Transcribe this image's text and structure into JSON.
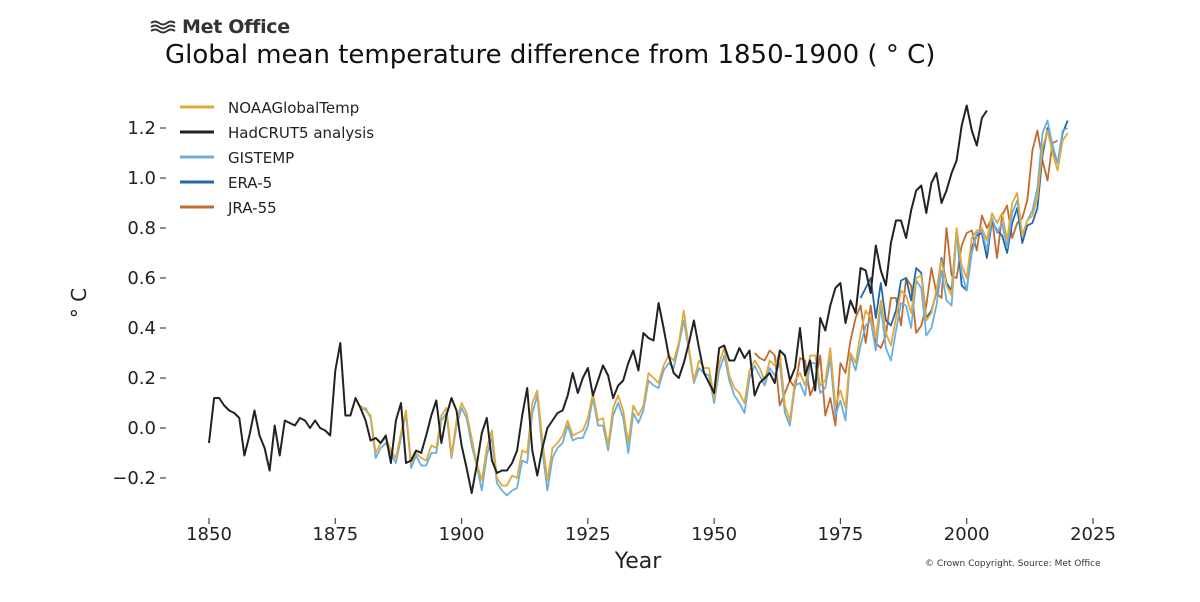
{
  "logo": {
    "text": "Met Office"
  },
  "credit": "© Crown Copyright. Source: Met Office",
  "chart_data": {
    "type": "line",
    "title": "Global mean temperature difference from 1850-1900 ( ° C)",
    "xlabel": "Year",
    "ylabel": "° C",
    "xlim": [
      1850,
      2025
    ],
    "ylim": [
      -0.2,
      1.2
    ],
    "x_ticks": [
      1850,
      1875,
      1900,
      1925,
      1950,
      1975,
      2000,
      2025
    ],
    "y_ticks": [
      -0.2,
      0.0,
      0.2,
      0.4,
      0.6,
      0.8,
      1.0,
      1.2
    ],
    "y_tick_labels": [
      "−0.2",
      "0.0",
      "0.2",
      "0.4",
      "0.6",
      "0.8",
      "1.0",
      "1.2"
    ],
    "grid": false,
    "legend_position": "top-left",
    "series": [
      {
        "name": "NOAAGlobalTemp",
        "color": "#e0a93c",
        "start_year": 1880,
        "values": [
          0.09,
          0.07,
          0.05,
          -0.1,
          -0.06,
          -0.04,
          -0.09,
          -0.12,
          -0.02,
          0.07,
          -0.14,
          -0.1,
          -0.12,
          -0.13,
          -0.07,
          -0.08,
          0.05,
          0.08,
          -0.11,
          0.03,
          0.1,
          0.06,
          -0.04,
          -0.14,
          -0.21,
          -0.08,
          -0.01,
          -0.2,
          -0.23,
          -0.23,
          -0.19,
          -0.2,
          -0.09,
          -0.1,
          0.1,
          0.15,
          -0.05,
          -0.21,
          -0.08,
          -0.06,
          -0.03,
          0.03,
          -0.03,
          -0.02,
          -0.01,
          0.04,
          0.14,
          0.03,
          0.04,
          -0.07,
          0.08,
          0.13,
          0.07,
          -0.06,
          0.09,
          0.05,
          0.09,
          0.22,
          0.2,
          0.18,
          0.25,
          0.29,
          0.27,
          0.34,
          0.47,
          0.32,
          0.19,
          0.27,
          0.24,
          0.24,
          0.12,
          0.26,
          0.32,
          0.21,
          0.16,
          0.14,
          0.1,
          0.23,
          0.27,
          0.24,
          0.19,
          0.27,
          0.25,
          0.3,
          0.09,
          0.03,
          0.19,
          0.22,
          0.17,
          0.29,
          0.29,
          0.17,
          0.19,
          0.32,
          0.09,
          0.15,
          0.08,
          0.3,
          0.26,
          0.38,
          0.47,
          0.44,
          0.36,
          0.51,
          0.38,
          0.33,
          0.44,
          0.55,
          0.53,
          0.46,
          0.6,
          0.61,
          0.43,
          0.46,
          0.55,
          0.67,
          0.57,
          0.53,
          0.8,
          0.65,
          0.6,
          0.76,
          0.79,
          0.8,
          0.75,
          0.86,
          0.82,
          0.86,
          0.75,
          0.9,
          0.94,
          0.77,
          0.83,
          0.85,
          0.92,
          1.12,
          1.19,
          1.1,
          1.03,
          1.15,
          1.18
        ]
      },
      {
        "name": "HadCRUT5 analysis",
        "color": "#222222",
        "start_year": 1850,
        "values": [
          -0.06,
          0.12,
          0.12,
          0.09,
          0.07,
          0.06,
          0.04,
          -0.11,
          -0.03,
          0.07,
          -0.03,
          -0.08,
          -0.17,
          0.01,
          -0.11,
          0.03,
          0.02,
          0.01,
          0.04,
          0.03,
          0.0,
          0.03,
          0.0,
          -0.01,
          -0.03,
          0.23,
          0.34,
          0.05,
          0.05,
          0.12,
          0.08,
          0.03,
          -0.05,
          -0.04,
          -0.06,
          -0.03,
          -0.14,
          0.03,
          0.1,
          -0.14,
          -0.13,
          -0.09,
          -0.1,
          -0.03,
          0.05,
          0.11,
          -0.06,
          0.05,
          0.12,
          0.07,
          -0.07,
          -0.16,
          -0.26,
          -0.15,
          -0.02,
          0.04,
          -0.13,
          -0.18,
          -0.17,
          -0.17,
          -0.14,
          -0.09,
          0.05,
          0.16,
          -0.09,
          -0.19,
          -0.08,
          0.0,
          0.03,
          0.06,
          0.07,
          0.13,
          0.22,
          0.14,
          0.2,
          0.24,
          0.13,
          0.19,
          0.25,
          0.21,
          0.12,
          0.17,
          0.19,
          0.26,
          0.31,
          0.23,
          0.38,
          0.36,
          0.35,
          0.5,
          0.4,
          0.29,
          0.22,
          0.2,
          0.26,
          0.34,
          0.43,
          0.32,
          0.22,
          0.18,
          0.14,
          0.32,
          0.33,
          0.27,
          0.27,
          0.32,
          0.28,
          0.31,
          0.13,
          0.18,
          0.2,
          0.22,
          0.18,
          0.31,
          0.29,
          0.19,
          0.24,
          0.4,
          0.21,
          0.27,
          0.15,
          0.44,
          0.39,
          0.49,
          0.56,
          0.58,
          0.42,
          0.51,
          0.46,
          0.64,
          0.63,
          0.54,
          0.73,
          0.63,
          0.57,
          0.74,
          0.83,
          0.83,
          0.76,
          0.87,
          0.95,
          0.97,
          0.86,
          0.98,
          1.02,
          0.9,
          0.95,
          1.02,
          1.07,
          1.21,
          1.29,
          1.19,
          1.13,
          1.24,
          1.27
        ]
      },
      {
        "name": "GISTEMP",
        "color": "#6aaee0",
        "start_year": 1880,
        "values": [
          0.07,
          0.08,
          0.04,
          -0.12,
          -0.08,
          -0.06,
          -0.1,
          -0.14,
          -0.04,
          0.06,
          -0.16,
          -0.11,
          -0.15,
          -0.15,
          -0.1,
          -0.1,
          0.03,
          0.06,
          -0.12,
          0.01,
          0.08,
          0.04,
          -0.07,
          -0.15,
          -0.25,
          -0.11,
          -0.04,
          -0.22,
          -0.25,
          -0.27,
          -0.25,
          -0.24,
          -0.13,
          -0.14,
          0.06,
          0.13,
          -0.09,
          -0.25,
          -0.12,
          -0.08,
          -0.06,
          0.01,
          -0.05,
          -0.04,
          -0.04,
          0.01,
          0.12,
          0.01,
          0.01,
          -0.09,
          0.05,
          0.1,
          0.04,
          -0.1,
          0.06,
          0.02,
          0.07,
          0.19,
          0.17,
          0.16,
          0.23,
          0.26,
          0.24,
          0.33,
          0.43,
          0.31,
          0.18,
          0.24,
          0.22,
          0.21,
          0.1,
          0.23,
          0.29,
          0.19,
          0.13,
          0.1,
          0.06,
          0.2,
          0.25,
          0.21,
          0.17,
          0.24,
          0.21,
          0.26,
          0.06,
          0.01,
          0.17,
          0.18,
          0.13,
          0.26,
          0.26,
          0.14,
          0.16,
          0.28,
          0.05,
          0.11,
          0.03,
          0.29,
          0.23,
          0.33,
          0.41,
          0.43,
          0.31,
          0.49,
          0.32,
          0.27,
          0.39,
          0.5,
          0.49,
          0.4,
          0.59,
          0.56,
          0.37,
          0.4,
          0.49,
          0.63,
          0.51,
          0.49,
          0.78,
          0.62,
          0.55,
          0.7,
          0.78,
          0.79,
          0.71,
          0.84,
          0.78,
          0.82,
          0.72,
          0.86,
          0.91,
          0.77,
          0.83,
          0.87,
          0.96,
          1.18,
          1.23,
          1.13,
          1.06,
          1.19,
          1.2
        ]
      },
      {
        "name": "ERA-5",
        "color": "#2167ad",
        "start_year": 1979,
        "values": [
          0.52,
          0.56,
          0.6,
          0.44,
          0.58,
          0.43,
          0.41,
          0.47,
          0.59,
          0.6,
          0.51,
          0.64,
          0.62,
          0.44,
          0.47,
          0.54,
          0.68,
          0.58,
          0.55,
          0.79,
          0.57,
          0.55,
          0.72,
          0.77,
          0.78,
          0.68,
          0.83,
          0.79,
          0.77,
          0.7,
          0.82,
          0.88,
          0.74,
          0.81,
          0.82,
          0.88,
          1.09,
          1.2,
          1.12,
          1.06,
          1.18,
          1.23
        ]
      },
      {
        "name": "JRA-55",
        "color": "#c26a2f",
        "start_year": 1958,
        "values": [
          0.3,
          0.28,
          0.27,
          0.31,
          0.29,
          0.09,
          0.14,
          0.19,
          0.16,
          0.28,
          0.27,
          0.13,
          0.18,
          0.29,
          0.05,
          0.12,
          0.01,
          0.26,
          0.22,
          0.35,
          0.44,
          0.49,
          0.34,
          0.49,
          0.34,
          0.32,
          0.37,
          0.52,
          0.52,
          0.41,
          0.6,
          0.57,
          0.38,
          0.41,
          0.49,
          0.64,
          0.54,
          0.52,
          0.8,
          0.61,
          0.6,
          0.73,
          0.78,
          0.79,
          0.71,
          0.85,
          0.8,
          0.84,
          0.68,
          0.85,
          0.89,
          0.76,
          0.82,
          0.84,
          0.91,
          1.11,
          1.19,
          1.07,
          0.99,
          1.14,
          1.15
        ]
      }
    ]
  }
}
